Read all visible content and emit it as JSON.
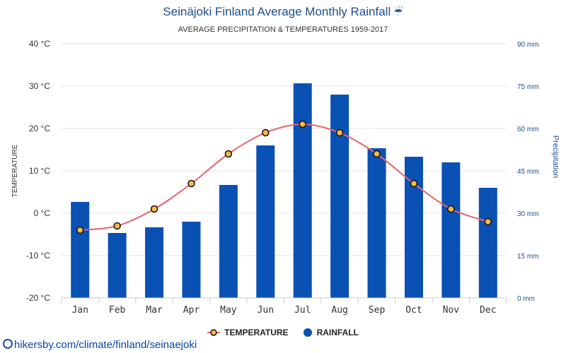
{
  "header": {
    "title": "Seinäjoki Finland Average Monthly Rainfall",
    "title_icon": "umbrella-icon",
    "subtitle": "AVERAGE PRECIPITATION & TEMPERATURES 1959-2017"
  },
  "source_url": "hikersby.com/climate/finland/seinaejoki",
  "legend": {
    "temperature": "TEMPERATURE",
    "rainfall": "RAINFALL"
  },
  "chart_data": {
    "type": "bar",
    "categories": [
      "Jan",
      "Feb",
      "Mar",
      "Apr",
      "May",
      "Jun",
      "Jul",
      "Aug",
      "Sep",
      "Oct",
      "Nov",
      "Dec"
    ],
    "series": [
      {
        "name": "RAINFALL",
        "type": "bar",
        "axis": "right",
        "unit": "mm",
        "color": "#0a51b4",
        "values": [
          34,
          23,
          25,
          27,
          40,
          54,
          76,
          72,
          53,
          50,
          48,
          39
        ]
      },
      {
        "name": "TEMPERATURE",
        "type": "line",
        "axis": "left",
        "unit": "°C",
        "color": "#e8636a",
        "marker_color": "#f5b942",
        "values": [
          -4,
          -3,
          1,
          7,
          14,
          19,
          21,
          19,
          14,
          7,
          1,
          -2
        ]
      }
    ],
    "y_left": {
      "label": "TEMPERATURE",
      "range": [
        -20,
        40
      ],
      "ticks": [
        "-20 °C",
        "-10 °C",
        "0 °C",
        "10 °C",
        "20 °C",
        "30 °C",
        "40 °C"
      ]
    },
    "y_right": {
      "label": "Precipitation",
      "range": [
        0,
        90
      ],
      "ticks": [
        "0 mm",
        "15 mm",
        "30 mm",
        "45 mm",
        "60 mm",
        "75 mm",
        "90 mm"
      ]
    },
    "grid": true,
    "legend_position": "bottom-center"
  }
}
